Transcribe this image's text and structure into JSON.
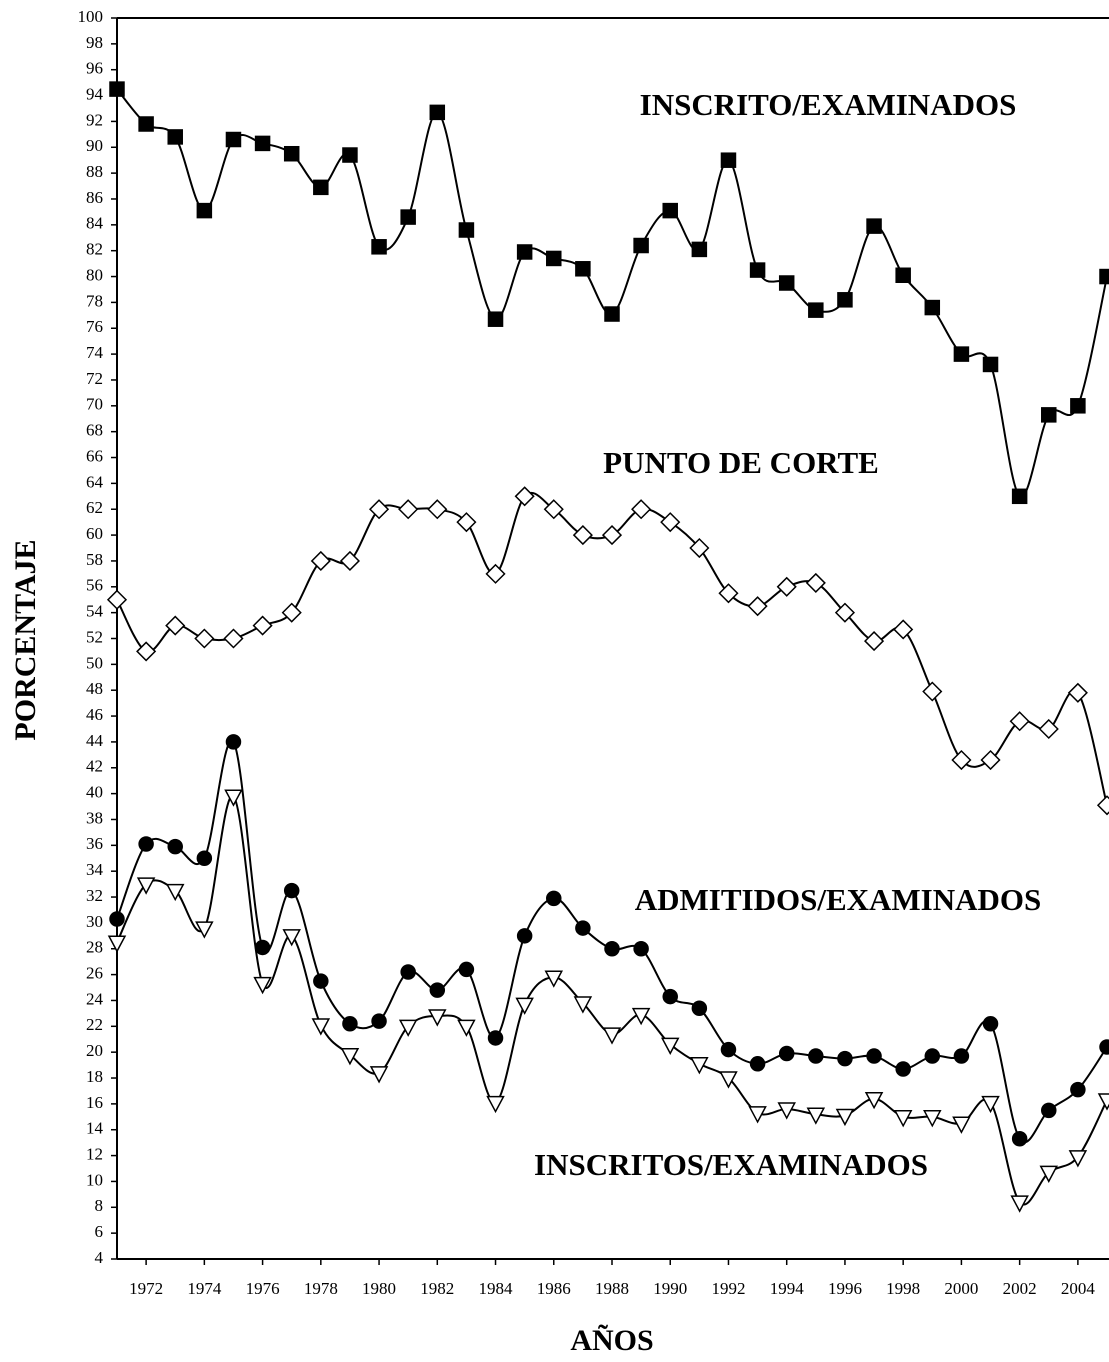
{
  "chart_data": {
    "type": "line",
    "x_label": "AÑOS",
    "y_label": "PORCENTAJE",
    "x": [
      1971,
      1972,
      1973,
      1974,
      1975,
      1976,
      1977,
      1978,
      1979,
      1980,
      1981,
      1982,
      1983,
      1984,
      1985,
      1986,
      1987,
      1988,
      1989,
      1990,
      1991,
      1992,
      1993,
      1994,
      1995,
      1996,
      1997,
      1998,
      1999,
      2000,
      2001,
      2002,
      2003,
      2004,
      2005
    ],
    "xlim": [
      1971,
      2005
    ],
    "xticks": [
      1972,
      1974,
      1976,
      1978,
      1980,
      1982,
      1984,
      1986,
      1988,
      1990,
      1992,
      1994,
      1996,
      1998,
      2000,
      2002,
      2004
    ],
    "ylim": [
      4,
      100
    ],
    "yticks": [
      4,
      6,
      8,
      10,
      12,
      14,
      16,
      18,
      20,
      22,
      24,
      26,
      28,
      30,
      32,
      34,
      36,
      38,
      40,
      42,
      44,
      46,
      48,
      50,
      52,
      54,
      56,
      58,
      60,
      62,
      64,
      66,
      68,
      70,
      72,
      74,
      76,
      78,
      80,
      82,
      84,
      86,
      88,
      90,
      92,
      94,
      96,
      98,
      100
    ],
    "smooth": true,
    "series": [
      {
        "name": "INSCRITO/EXAMINADOS",
        "color": "#000000",
        "marker": "square",
        "marker_fill": "#000000",
        "values": [
          94.5,
          91.8,
          90.8,
          85.1,
          90.6,
          90.3,
          89.5,
          86.9,
          89.4,
          82.3,
          84.6,
          92.7,
          83.6,
          76.7,
          81.9,
          81.4,
          80.6,
          77.1,
          82.4,
          85.1,
          82.1,
          89.0,
          80.5,
          79.5,
          77.4,
          78.2,
          83.9,
          80.1,
          77.6,
          74.0,
          73.2,
          63.0,
          69.3,
          70.0,
          80.0
        ]
      },
      {
        "name": "PUNTO DE CORTE",
        "color": "#000000",
        "marker": "diamond",
        "marker_fill": "#ffffff",
        "values": [
          55,
          51,
          53,
          52,
          52,
          53,
          54,
          58,
          58,
          62,
          62,
          62,
          61,
          57,
          63,
          62,
          60,
          60,
          62,
          61,
          59,
          55.5,
          54.5,
          56,
          56.3,
          54,
          51.8,
          52.7,
          47.9,
          42.6,
          42.6,
          45.6,
          45,
          47.8,
          39.1
        ]
      },
      {
        "name": "ADMITIDOS/EXAMINADOS",
        "color": "#000000",
        "marker": "circle",
        "marker_fill": "#000000",
        "values": [
          30.3,
          36.1,
          35.9,
          35.0,
          44.0,
          28.1,
          32.5,
          25.5,
          22.2,
          22.4,
          26.2,
          24.8,
          26.4,
          21.1,
          29.0,
          31.9,
          29.6,
          28.0,
          28.0,
          24.3,
          23.4,
          20.2,
          19.1,
          19.9,
          19.7,
          19.5,
          19.7,
          18.7,
          19.7,
          19.7,
          22.2,
          13.3,
          15.5,
          17.1,
          20.4
        ]
      },
      {
        "name": "INSCRITOS/EXAMINADOS",
        "color": "#000000",
        "marker": "triangle-down",
        "marker_fill": "#ffffff",
        "values": [
          28.5,
          33.0,
          32.5,
          29.6,
          39.8,
          25.3,
          29.0,
          22.1,
          19.8,
          18.4,
          22.0,
          22.8,
          22.0,
          16.1,
          23.7,
          25.8,
          23.8,
          21.4,
          22.9,
          20.6,
          19.1,
          18.0,
          15.3,
          15.6,
          15.2,
          15.1,
          16.4,
          15.0,
          15.0,
          14.5,
          16.1,
          8.4,
          10.7,
          11.9,
          16.3
        ]
      }
    ]
  }
}
